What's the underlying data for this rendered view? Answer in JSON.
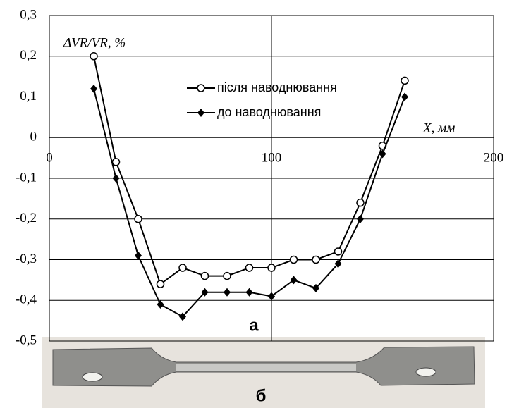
{
  "chart_data": {
    "type": "line",
    "y_label": "ΔVR/VR, %",
    "x_label": "X, мм",
    "x": [
      20,
      30,
      40,
      50,
      60,
      70,
      80,
      90,
      100,
      110,
      120,
      130,
      140,
      150,
      160
    ],
    "series": [
      {
        "name": "після наводнювання",
        "color": "#000000",
        "marker": "circle",
        "values": [
          0.2,
          -0.06,
          -0.2,
          -0.36,
          -0.32,
          -0.34,
          -0.34,
          -0.32,
          -0.32,
          -0.3,
          -0.3,
          -0.28,
          -0.16,
          -0.02,
          0.14
        ]
      },
      {
        "name": "до наводнювання",
        "color": "#000000",
        "marker": "diamond",
        "values": [
          0.12,
          -0.1,
          -0.29,
          -0.41,
          -0.44,
          -0.38,
          -0.38,
          -0.38,
          -0.39,
          -0.35,
          -0.37,
          -0.31,
          -0.2,
          -0.04,
          0.1
        ]
      }
    ],
    "xlim": [
      0,
      200
    ],
    "xticks": [
      0,
      100,
      200
    ],
    "ylim": [
      -0.5,
      0.3
    ],
    "yticks": [
      {
        "value": -0.5,
        "label": "-0,5"
      },
      {
        "value": -0.4,
        "label": "-0,4"
      },
      {
        "value": -0.3,
        "label": "-0,3"
      },
      {
        "value": -0.2,
        "label": "-0,2"
      },
      {
        "value": -0.1,
        "label": "-0,1"
      },
      0,
      {
        "value": 0.1,
        "label": "0,1"
      },
      {
        "value": 0.2,
        "label": "0,2"
      },
      {
        "value": 0.3,
        "label": "0,3"
      }
    ],
    "grid": true,
    "annotations": [
      "а",
      "б"
    ]
  }
}
